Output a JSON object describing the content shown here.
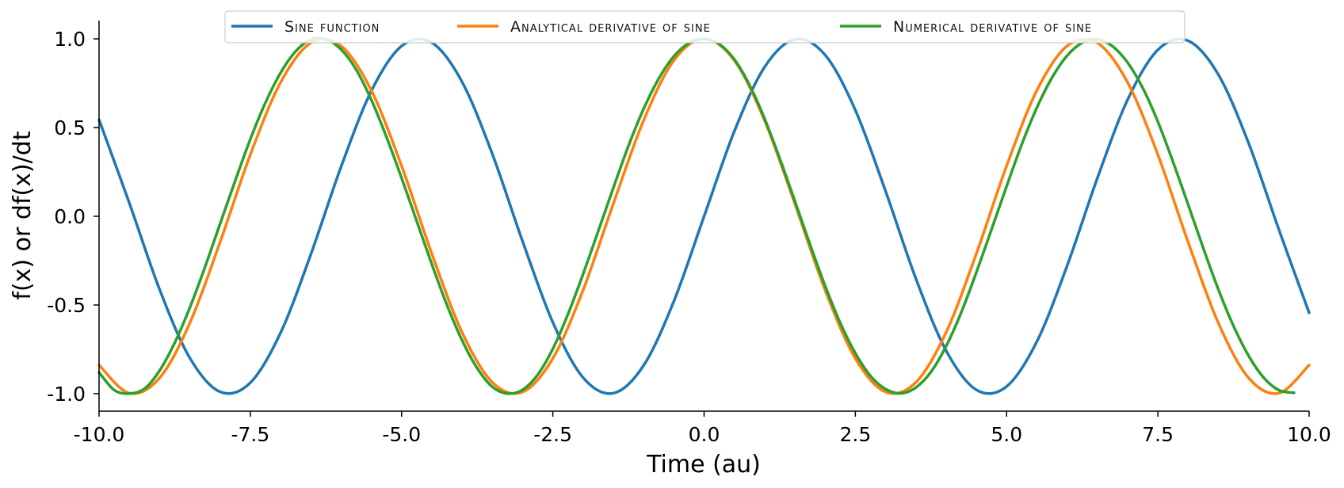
{
  "chart_data": {
    "type": "line",
    "xlabel": "Time (au)",
    "ylabel": "f(x) or df(x)/dt",
    "xlim": [
      -10,
      10
    ],
    "ylim": [
      -1.1,
      1.1
    ],
    "xticks": [
      -10,
      -7.5,
      -5,
      -2.5,
      0,
      2.5,
      5,
      7.5,
      10
    ],
    "xtick_labels": [
      "-10.0",
      "-7.5",
      "-5.0",
      "-2.5",
      "0.0",
      "2.5",
      "5.0",
      "7.5",
      "10.0"
    ],
    "yticks": [
      -1,
      -0.5,
      0,
      0.5,
      1
    ],
    "ytick_labels": [
      "-1.0",
      "-0.5",
      "0.0",
      "0.5",
      "1.0"
    ],
    "legend_position": "top-center",
    "grid": false,
    "series": [
      {
        "name": "Sine function",
        "color": "#1f77b4",
        "x": [
          -10,
          -9.5,
          -9,
          -8.5,
          -8,
          -7.5,
          -7,
          -6.5,
          -6,
          -5.5,
          -5,
          -4.5,
          -4,
          -3.5,
          -3,
          -2.5,
          -2,
          -1.5,
          -1,
          -0.5,
          0,
          0.5,
          1,
          1.5,
          2,
          2.5,
          3,
          3.5,
          4,
          4.5,
          5,
          5.5,
          6,
          6.5,
          7,
          7.5,
          8,
          8.5,
          9,
          9.5,
          10
        ],
        "y": [
          0.544,
          0.075,
          -0.412,
          -0.798,
          -0.989,
          -0.938,
          -0.657,
          -0.215,
          0.279,
          0.706,
          0.959,
          0.978,
          0.757,
          0.351,
          -0.141,
          -0.598,
          -0.909,
          -0.997,
          -0.841,
          -0.479,
          0.0,
          0.479,
          0.841,
          0.997,
          0.909,
          0.598,
          0.141,
          -0.351,
          -0.757,
          -0.978,
          -0.959,
          -0.706,
          -0.279,
          0.215,
          0.657,
          0.938,
          0.989,
          0.798,
          0.412,
          -0.075,
          -0.544
        ]
      },
      {
        "name": "Analytical derivative of sine",
        "color": "#ff7f0e",
        "x": [
          -10,
          -9.5,
          -9,
          -8.5,
          -8,
          -7.5,
          -7,
          -6.5,
          -6,
          -5.5,
          -5,
          -4.5,
          -4,
          -3.5,
          -3,
          -2.5,
          -2,
          -1.5,
          -1,
          -0.5,
          0,
          0.5,
          1,
          1.5,
          2,
          2.5,
          3,
          3.5,
          4,
          4.5,
          5,
          5.5,
          6,
          6.5,
          7,
          7.5,
          8,
          8.5,
          9,
          9.5,
          10
        ],
        "y": [
          -0.839,
          -0.997,
          -0.911,
          -0.602,
          -0.146,
          0.347,
          0.754,
          0.977,
          0.96,
          0.709,
          0.284,
          -0.211,
          -0.654,
          -0.936,
          -0.99,
          -0.801,
          -0.416,
          0.071,
          0.54,
          0.878,
          1.0,
          0.878,
          0.54,
          0.071,
          -0.416,
          -0.801,
          -0.99,
          -0.936,
          -0.654,
          -0.211,
          0.284,
          0.709,
          0.96,
          0.977,
          0.754,
          0.347,
          -0.146,
          -0.602,
          -0.911,
          -0.997,
          -0.839
        ]
      },
      {
        "name": "Numerical derivative of sine",
        "color": "#2ca02c",
        "x": [
          -10,
          -9.75,
          -9.5,
          -9.25,
          -9,
          -8.75,
          -8.5,
          -8.25,
          -8,
          -7.75,
          -7.5,
          -7.25,
          -7,
          -6.75,
          -6.5,
          -6.25,
          -6,
          -5.75,
          -5.5,
          -5.25,
          -5,
          -4.75,
          -4.5,
          -4.25,
          -4,
          -3.75,
          -3.5,
          -3.25,
          -3,
          -2.75,
          -2.5,
          -2.25,
          -2,
          -1.75,
          -1.5,
          -1.25,
          -1,
          -0.75,
          -0.5,
          -0.25,
          0,
          0.25,
          0.5,
          0.75,
          1,
          1.25,
          1.5,
          1.75,
          2,
          2.25,
          2.5,
          2.75,
          3,
          3.25,
          3.5,
          3.75,
          4,
          4.25,
          4.5,
          4.75,
          5,
          5.25,
          5.5,
          5.75,
          6,
          6.25,
          6.5,
          6.75,
          7,
          7.25,
          7.5,
          7.75,
          8,
          8.25,
          8.5,
          8.75,
          9,
          9.25,
          9.5,
          9.75
        ],
        "y": [
          -0.88,
          -0.979,
          -0.999,
          -0.972,
          -0.87,
          -0.713,
          -0.515,
          -0.287,
          -0.043,
          0.2,
          0.434,
          0.64,
          0.808,
          0.93,
          0.995,
          0.997,
          0.94,
          0.826,
          0.656,
          0.447,
          0.216,
          -0.027,
          -0.27,
          -0.5,
          -0.699,
          -0.856,
          -0.961,
          -0.999,
          -0.978,
          -0.893,
          -0.747,
          -0.552,
          -0.326,
          -0.084,
          0.16,
          0.397,
          0.605,
          0.775,
          0.901,
          0.976,
          1.0,
          0.97,
          0.884,
          0.74,
          0.55,
          0.326,
          0.086,
          -0.158,
          -0.392,
          -0.601,
          -0.772,
          -0.9,
          -0.974,
          -0.998,
          -0.965,
          -0.877,
          -0.732,
          -0.542,
          -0.316,
          -0.075,
          0.169,
          0.405,
          0.612,
          0.781,
          0.905,
          0.978,
          0.997,
          0.958,
          0.866,
          0.723,
          0.533,
          0.307,
          0.066,
          -0.179,
          -0.413,
          -0.618,
          -0.786,
          -0.91,
          -0.98,
          -0.995
        ]
      }
    ]
  }
}
